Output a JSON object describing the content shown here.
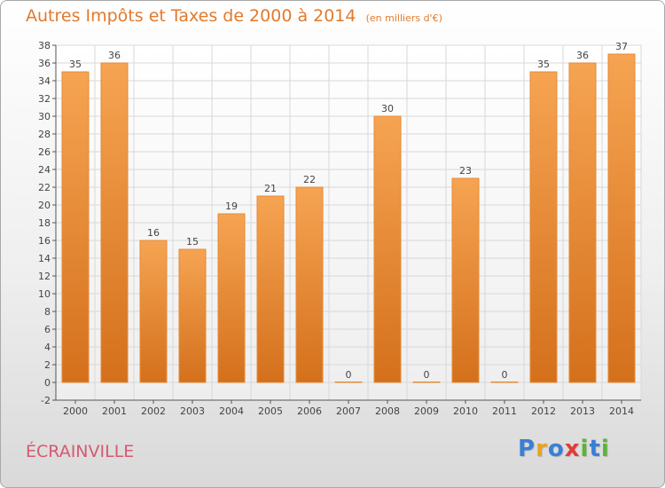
{
  "chart_data": {
    "type": "bar",
    "title": "Autres Impôts et Taxes de 2000 à 2014",
    "subtitle": "(en milliers d'€)",
    "categories": [
      "2000",
      "2001",
      "2002",
      "2003",
      "2004",
      "2005",
      "2006",
      "2007",
      "2008",
      "2009",
      "2010",
      "2011",
      "2012",
      "2013",
      "2014"
    ],
    "values": [
      35,
      36,
      16,
      15,
      19,
      21,
      22,
      0,
      30,
      0,
      23,
      0,
      35,
      36,
      37
    ],
    "ylim": [
      -2,
      38
    ],
    "yticks": [
      -2,
      0,
      2,
      4,
      6,
      8,
      10,
      12,
      14,
      16,
      18,
      20,
      22,
      24,
      26,
      28,
      30,
      32,
      34,
      36,
      38
    ],
    "grid": true,
    "bar_color": "#f0953f"
  },
  "footer": {
    "town": "ÉCRAINVILLE",
    "logo_letters": [
      {
        "char": "P",
        "color": "#3a7fd5"
      },
      {
        "char": "r",
        "color": "#e8a31c"
      },
      {
        "char": "o",
        "color": "#3a7fd5"
      },
      {
        "char": "x",
        "color": "#e23b3b"
      },
      {
        "char": "i",
        "color": "#5bb338"
      },
      {
        "char": "t",
        "color": "#3a7fd5"
      },
      {
        "char": "i",
        "color": "#5bb338"
      }
    ]
  }
}
